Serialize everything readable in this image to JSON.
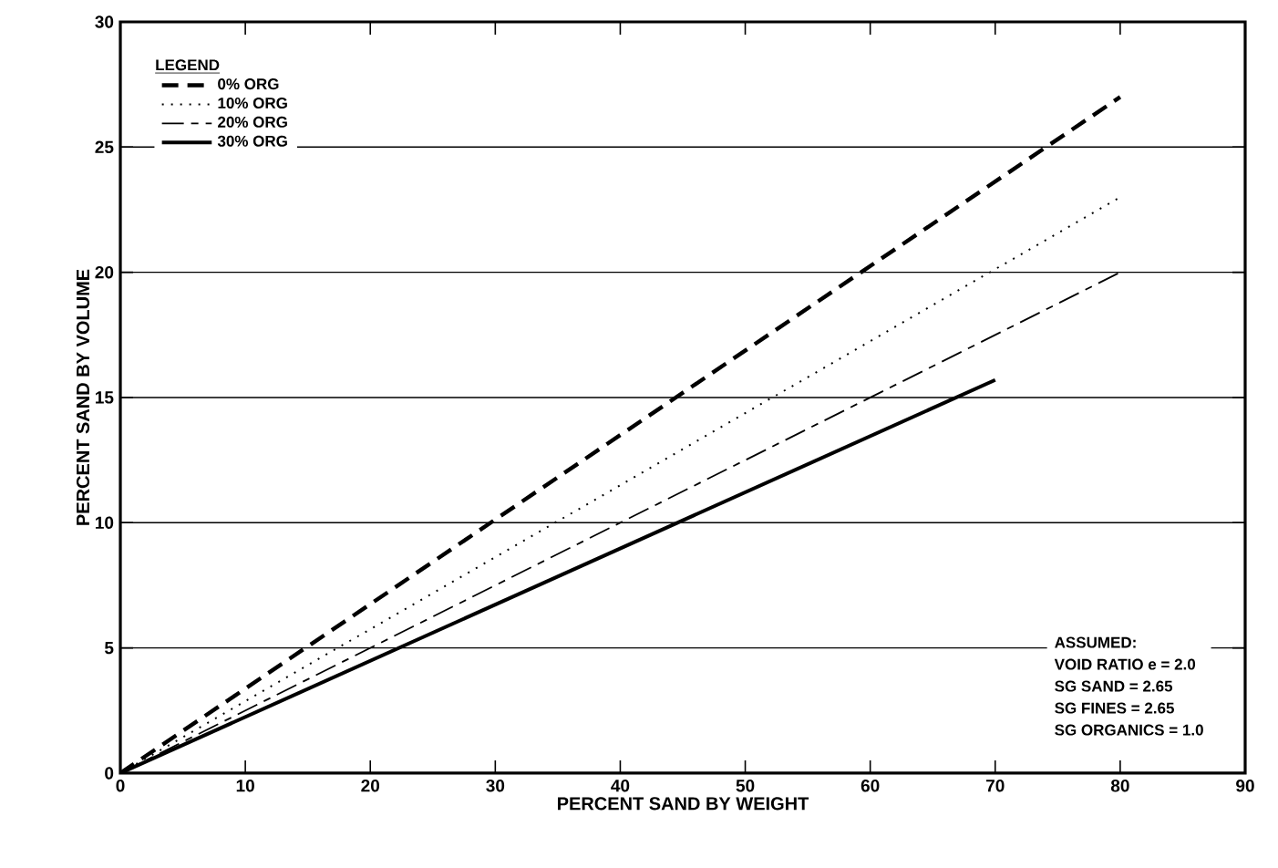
{
  "chart_data": {
    "type": "line",
    "xlabel": "PERCENT SAND BY WEIGHT",
    "ylabel": "PERCENT SAND BY VOLUME",
    "legend_title": "LEGEND",
    "xlim": [
      0,
      90
    ],
    "ylim": [
      0,
      30
    ],
    "xticks": [
      0,
      10,
      20,
      30,
      40,
      50,
      60,
      70,
      80,
      90
    ],
    "yticks": [
      0,
      5,
      10,
      15,
      20,
      25,
      30
    ],
    "grid": "y",
    "legend": "top left",
    "series": [
      {
        "name": "0% ORG",
        "color": "#000000",
        "line_style": "dashed",
        "x": [
          0,
          80
        ],
        "values": [
          0,
          27
        ]
      },
      {
        "name": "10% ORG",
        "color": "#000000",
        "line_style": "dotted",
        "x": [
          0,
          80
        ],
        "values": [
          0,
          23
        ]
      },
      {
        "name": "20% ORG",
        "color": "#000000",
        "line_style": "dashdot",
        "x": [
          0,
          80
        ],
        "values": [
          0,
          20
        ]
      },
      {
        "name": "30% ORG",
        "color": "#000000",
        "line_style": "solid",
        "x": [
          0,
          70
        ],
        "values": [
          0,
          15.7
        ]
      }
    ],
    "annotations": [
      "ASSUMED:",
      "VOID RATIO e = 2.0",
      "SG SAND = 2.65",
      "SG FINES = 2.65",
      "SG ORGANICS = 1.0"
    ]
  }
}
